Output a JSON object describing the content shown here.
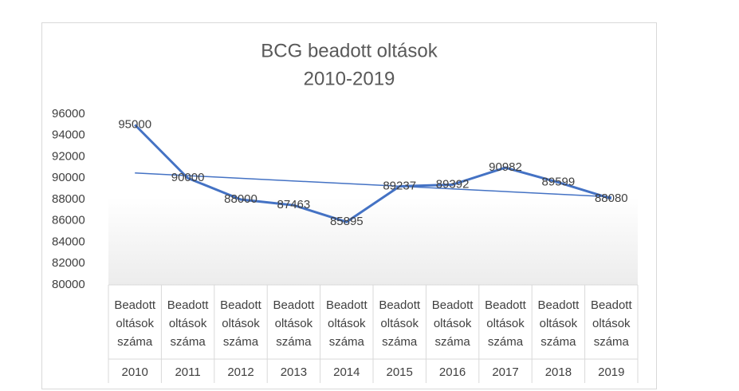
{
  "chart_data": {
    "type": "line",
    "title_lines": [
      "BCG beadott oltások",
      "2010-2019"
    ],
    "categories": [
      "2010",
      "2011",
      "2012",
      "2013",
      "2014",
      "2015",
      "2016",
      "2017",
      "2018",
      "2019"
    ],
    "category_group_labels": [
      "Beadott oltások száma",
      "Beadott oltások száma",
      "Beadott oltások száma",
      "Beadott oltások száma",
      "Beadott oltások száma",
      "Beadott oltások száma",
      "Beadott oltások száma",
      "Beadott oltások száma",
      "Beadott oltások száma",
      "Beadott oltások száma"
    ],
    "series": [
      {
        "color": "#4472c4",
        "values": [
          95000,
          90000,
          88000,
          87463,
          85895,
          89237,
          89392,
          90982,
          89599,
          88080
        ]
      }
    ],
    "trendline": {
      "color": "#4472c4",
      "values": [
        90484,
        88245
      ]
    },
    "ylim": [
      80000,
      96000
    ],
    "yticks": [
      80000,
      82000,
      84000,
      86000,
      88000,
      90000,
      92000,
      94000,
      96000
    ],
    "data_labels": true
  }
}
